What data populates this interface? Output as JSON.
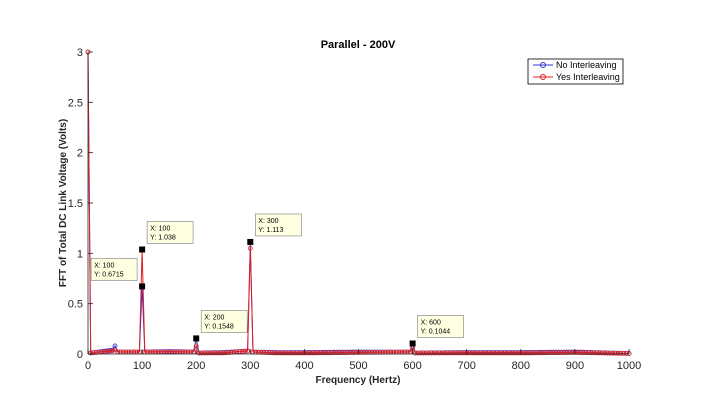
{
  "chart_data": {
    "type": "line",
    "title": "Parallel - 200V",
    "xlabel": "Frequency (Hertz)",
    "ylabel": "FFT of Total DC Link Voltage (Volts)",
    "xlim": [
      0,
      1000
    ],
    "ylim": [
      0,
      3
    ],
    "xticks": [
      "0",
      "100",
      "200",
      "300",
      "400",
      "500",
      "600",
      "700",
      "800",
      "900",
      "1000"
    ],
    "yticks": [
      "0",
      "0.5",
      "1",
      "1.5",
      "2",
      "2.5",
      "3"
    ],
    "grid": false,
    "legend_position": "top-right",
    "marker_step": 5,
    "series": [
      {
        "name": "No Interleaving",
        "color": "#3333cc",
        "marker": "circle",
        "points": [
          [
            0,
            3.0
          ],
          [
            5,
            0.01
          ],
          [
            45,
            0.04
          ],
          [
            50,
            0.08
          ],
          [
            55,
            0.02
          ],
          [
            95,
            0.02
          ],
          [
            100,
            0.6715
          ],
          [
            105,
            0.02
          ],
          [
            150,
            0.025
          ],
          [
            195,
            0.02
          ],
          [
            200,
            0.1548
          ],
          [
            205,
            0.01
          ],
          [
            250,
            0.015
          ],
          [
            295,
            0.03
          ],
          [
            300,
            1.113
          ],
          [
            305,
            0.02
          ],
          [
            350,
            0.015
          ],
          [
            400,
            0.015
          ],
          [
            500,
            0.02
          ],
          [
            595,
            0.02
          ],
          [
            600,
            0.1044
          ],
          [
            605,
            0.01
          ],
          [
            700,
            0.015
          ],
          [
            800,
            0.015
          ],
          [
            900,
            0.02
          ],
          [
            1000,
            0.005
          ]
        ]
      },
      {
        "name": "Yes Interleaving",
        "color": "#e02020",
        "marker": "circle",
        "points": [
          [
            0,
            3.0
          ],
          [
            5,
            0.01
          ],
          [
            45,
            0.03
          ],
          [
            50,
            0.04
          ],
          [
            55,
            0.02
          ],
          [
            95,
            0.02
          ],
          [
            100,
            1.038
          ],
          [
            105,
            0.02
          ],
          [
            150,
            0.02
          ],
          [
            195,
            0.02
          ],
          [
            200,
            0.08
          ],
          [
            205,
            0.01
          ],
          [
            250,
            0.01
          ],
          [
            295,
            0.03
          ],
          [
            300,
            1.05
          ],
          [
            305,
            0.02
          ],
          [
            350,
            0.01
          ],
          [
            400,
            0.01
          ],
          [
            500,
            0.015
          ],
          [
            595,
            0.02
          ],
          [
            600,
            0.06
          ],
          [
            605,
            0.01
          ],
          [
            700,
            0.01
          ],
          [
            800,
            0.01
          ],
          [
            900,
            0.015
          ],
          [
            1000,
            0.005
          ]
        ]
      }
    ],
    "datatips": [
      {
        "x": 100,
        "y": 0.6715,
        "text_x": "X: 100",
        "text_y": "Y: 0.6715",
        "side": "left"
      },
      {
        "x": 100,
        "y": 1.038,
        "text_x": "X: 100",
        "text_y": "Y: 1.038",
        "side": "right"
      },
      {
        "x": 200,
        "y": 0.1548,
        "text_x": "X: 200",
        "text_y": "Y: 0.1548",
        "side": "right"
      },
      {
        "x": 300,
        "y": 1.113,
        "text_x": "X: 300",
        "text_y": "Y: 1.113",
        "side": "right"
      },
      {
        "x": 600,
        "y": 0.1044,
        "text_x": "X: 600",
        "text_y": "Y: 0.1044",
        "side": "right"
      }
    ]
  }
}
